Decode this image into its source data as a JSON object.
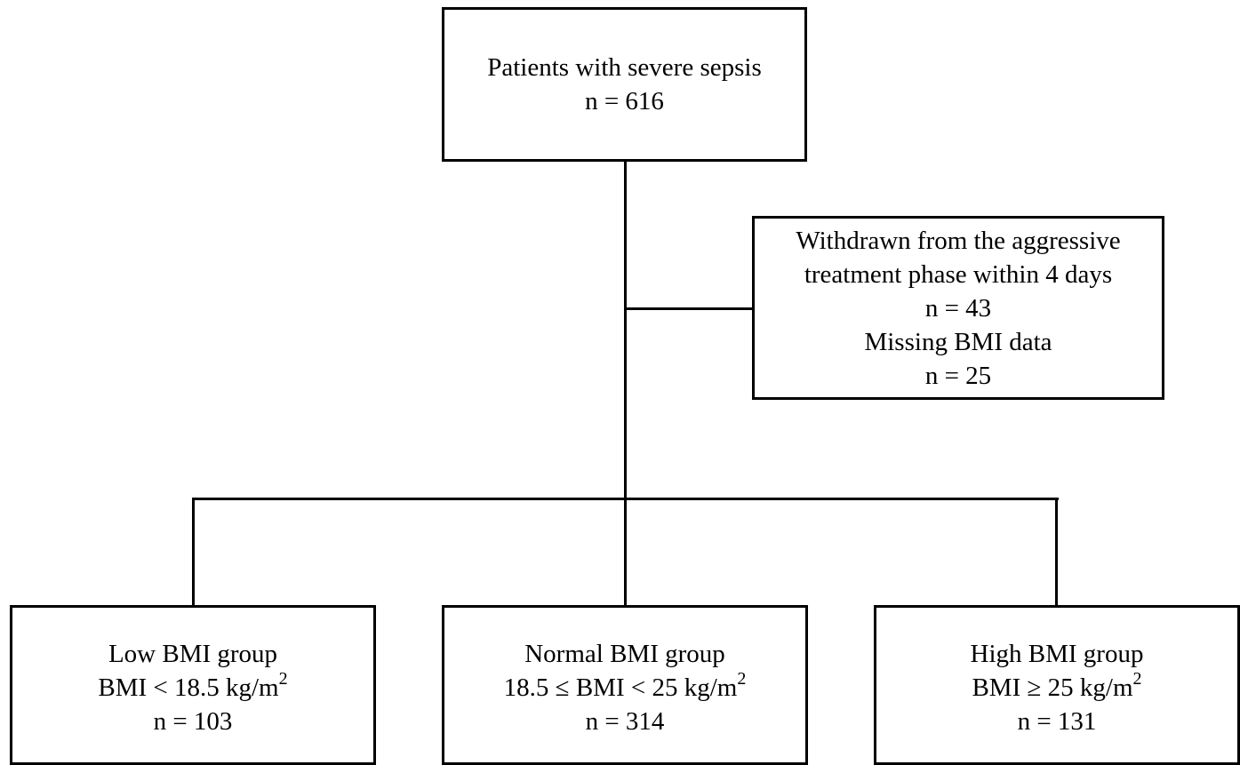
{
  "top_box": {
    "line1": "Patients with severe sepsis",
    "line2": "n = 616"
  },
  "excluded_box": {
    "line1": "Withdrawn from the aggressive",
    "line2": "treatment phase within 4 days",
    "line3": "n = 43",
    "line4": "Missing BMI data",
    "line5": "n = 25"
  },
  "groups": [
    {
      "name": "Low BMI group",
      "criterion": "BMI < 18.5 kg/m",
      "criterion_sup": "2",
      "n": "n = 103"
    },
    {
      "name": "Normal BMI group",
      "criterion": "18.5 ≤ BMI < 25 kg/m",
      "criterion_sup": "2",
      "n": "n = 314"
    },
    {
      "name": "High BMI group",
      "criterion": "BMI ≥ 25 kg/m",
      "criterion_sup": "2",
      "n": "n = 131"
    }
  ]
}
